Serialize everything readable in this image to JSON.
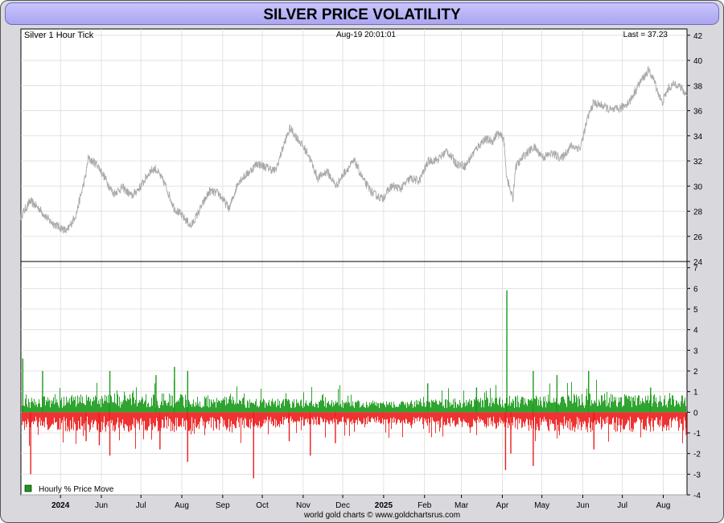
{
  "page": {
    "title": "SILVER PRICE VOLATILITY",
    "footer": "world gold charts © www.goldchartsrus.com"
  },
  "colors": {
    "title_bar": "#b7b2f7",
    "price_line": "#a9a9a9",
    "positive_bar": "#1a9a1a",
    "negative_bar": "#ee1c1c",
    "grid": "#dcdcdc"
  },
  "chart_data": [
    {
      "type": "line",
      "title": "",
      "labels": {
        "left": "Silver 1 Hour Tick",
        "center": "Aug-19  20:01:01",
        "right": "Last = 37.23"
      },
      "y_ticks": [
        24,
        26,
        28,
        30,
        32,
        34,
        36,
        38,
        40,
        42
      ],
      "ylim": [
        24,
        42.5
      ],
      "x_range": [
        "2024-04-01",
        "2025-08-19"
      ],
      "x_ticks": [
        {
          "label": "2024",
          "date": "2024-05-01",
          "bold": true
        },
        {
          "label": "Jun",
          "date": "2024-06-01"
        },
        {
          "label": "Jul",
          "date": "2024-07-01"
        },
        {
          "label": "Aug",
          "date": "2024-08-01"
        },
        {
          "label": "Sep",
          "date": "2024-09-01"
        },
        {
          "label": "Oct",
          "date": "2024-10-01"
        },
        {
          "label": "Nov",
          "date": "2024-11-01"
        },
        {
          "label": "Dec",
          "date": "2024-12-01"
        },
        {
          "label": "2025",
          "date": "2025-01-01",
          "bold": true
        },
        {
          "label": "Feb",
          "date": "2025-02-01"
        },
        {
          "label": "Mar",
          "date": "2025-03-01"
        },
        {
          "label": "Apr",
          "date": "2025-04-01"
        },
        {
          "label": "May",
          "date": "2025-05-01"
        },
        {
          "label": "Jun",
          "date": "2025-06-01"
        },
        {
          "label": "Jul",
          "date": "2025-07-01"
        },
        {
          "label": "Aug",
          "date": "2025-08-01"
        }
      ],
      "series": [
        {
          "name": "Silver",
          "points": [
            [
              "2024-04-01",
              27.6
            ],
            [
              "2024-04-08",
              28.8
            ],
            [
              "2024-04-15",
              28.2
            ],
            [
              "2024-04-22",
              27.3
            ],
            [
              "2024-04-29",
              26.8
            ],
            [
              "2024-05-06",
              26.4
            ],
            [
              "2024-05-13",
              27.8
            ],
            [
              "2024-05-20",
              30.8
            ],
            [
              "2024-05-22",
              32.2
            ],
            [
              "2024-05-29",
              31.7
            ],
            [
              "2024-06-05",
              30.4
            ],
            [
              "2024-06-10",
              29.4
            ],
            [
              "2024-06-17",
              29.9
            ],
            [
              "2024-06-24",
              29.2
            ],
            [
              "2024-07-01",
              30.0
            ],
            [
              "2024-07-08",
              31.2
            ],
            [
              "2024-07-12",
              31.4
            ],
            [
              "2024-07-19",
              30.2
            ],
            [
              "2024-07-26",
              28.3
            ],
            [
              "2024-08-05",
              27.2
            ],
            [
              "2024-08-08",
              26.8
            ],
            [
              "2024-08-15",
              28.2
            ],
            [
              "2024-08-22",
              29.6
            ],
            [
              "2024-08-29",
              29.4
            ],
            [
              "2024-09-06",
              28.2
            ],
            [
              "2024-09-13",
              30.4
            ],
            [
              "2024-09-20",
              31.0
            ],
            [
              "2024-09-27",
              31.8
            ],
            [
              "2024-10-04",
              31.5
            ],
            [
              "2024-10-11",
              31.2
            ],
            [
              "2024-10-18",
              33.5
            ],
            [
              "2024-10-22",
              34.6
            ],
            [
              "2024-10-29",
              33.6
            ],
            [
              "2024-11-05",
              32.5
            ],
            [
              "2024-11-12",
              30.6
            ],
            [
              "2024-11-19",
              31.2
            ],
            [
              "2024-11-26",
              30.0
            ],
            [
              "2024-12-03",
              31.2
            ],
            [
              "2024-12-10",
              32.0
            ],
            [
              "2024-12-17",
              30.4
            ],
            [
              "2024-12-24",
              29.4
            ],
            [
              "2024-12-31",
              29.0
            ],
            [
              "2025-01-07",
              30.0
            ],
            [
              "2025-01-14",
              29.8
            ],
            [
              "2025-01-21",
              30.6
            ],
            [
              "2025-01-28",
              30.4
            ],
            [
              "2025-02-04",
              32.0
            ],
            [
              "2025-02-11",
              32.1
            ],
            [
              "2025-02-18",
              32.8
            ],
            [
              "2025-02-25",
              31.8
            ],
            [
              "2025-03-04",
              31.6
            ],
            [
              "2025-03-11",
              32.8
            ],
            [
              "2025-03-18",
              33.7
            ],
            [
              "2025-03-25",
              33.6
            ],
            [
              "2025-03-28",
              34.2
            ],
            [
              "2025-04-02",
              33.8
            ],
            [
              "2025-04-04",
              31.0
            ],
            [
              "2025-04-07",
              29.6
            ],
            [
              "2025-04-09",
              29.0
            ],
            [
              "2025-04-11",
              31.5
            ],
            [
              "2025-04-18",
              32.5
            ],
            [
              "2025-04-25",
              33.1
            ],
            [
              "2025-05-02",
              32.3
            ],
            [
              "2025-05-09",
              32.6
            ],
            [
              "2025-05-16",
              32.2
            ],
            [
              "2025-05-23",
              33.2
            ],
            [
              "2025-05-30",
              33.0
            ],
            [
              "2025-06-05",
              35.5
            ],
            [
              "2025-06-09",
              36.6
            ],
            [
              "2025-06-16",
              36.4
            ],
            [
              "2025-06-23",
              36.0
            ],
            [
              "2025-06-30",
              36.2
            ],
            [
              "2025-07-07",
              36.8
            ],
            [
              "2025-07-14",
              38.2
            ],
            [
              "2025-07-21",
              39.2
            ],
            [
              "2025-07-25",
              38.4
            ],
            [
              "2025-07-31",
              36.6
            ],
            [
              "2025-08-05",
              37.8
            ],
            [
              "2025-08-11",
              38.2
            ],
            [
              "2025-08-19",
              37.23
            ]
          ]
        }
      ]
    },
    {
      "type": "bar",
      "title": "",
      "legend": "Hourly % Price Move",
      "legend_position": "bottom-left",
      "y_ticks": [
        -4,
        -3,
        -2,
        -1,
        0,
        1,
        2,
        3,
        4,
        5,
        6,
        7
      ],
      "ylim": [
        -4,
        7.3
      ],
      "typical_positive_range": [
        0.2,
        1.2
      ],
      "typical_negative_range": [
        -0.2,
        -1.3
      ],
      "notable_spikes": [
        [
          "2024-04-02",
          2.6
        ],
        [
          "2024-04-08",
          -3.0
        ],
        [
          "2024-04-17",
          2.0
        ],
        [
          "2024-05-20",
          -1.4
        ],
        [
          "2024-05-30",
          -1.6
        ],
        [
          "2024-06-07",
          2.0
        ],
        [
          "2024-06-07",
          -2.1
        ],
        [
          "2024-07-12",
          1.8
        ],
        [
          "2024-07-15",
          -1.8
        ],
        [
          "2024-07-26",
          2.2
        ],
        [
          "2024-08-05",
          -2.4
        ],
        [
          "2024-08-05",
          2.0
        ],
        [
          "2024-09-24",
          -3.2
        ],
        [
          "2024-10-21",
          -1.4
        ],
        [
          "2024-11-06",
          -2.1
        ],
        [
          "2024-11-25",
          -1.5
        ],
        [
          "2025-02-03",
          1.4
        ],
        [
          "2025-03-12",
          1.2
        ],
        [
          "2025-04-03",
          -2.8
        ],
        [
          "2025-04-04",
          5.9
        ],
        [
          "2025-04-07",
          -2.0
        ],
        [
          "2025-04-24",
          -2.6
        ],
        [
          "2025-04-24",
          2.0
        ],
        [
          "2025-05-12",
          1.8
        ],
        [
          "2025-06-05",
          2.0
        ],
        [
          "2025-06-09",
          -1.8
        ],
        [
          "2025-07-22",
          1.2
        ],
        [
          "2025-08-18",
          -1.1
        ]
      ]
    }
  ]
}
